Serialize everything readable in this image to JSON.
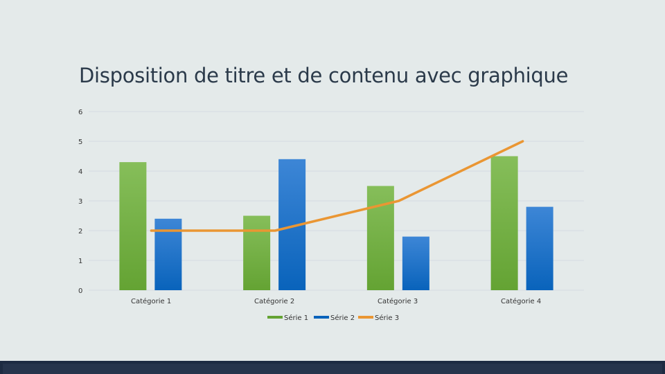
{
  "slide": {
    "title": "Disposition de titre et de contenu avec graphique"
  },
  "colors": {
    "background": "#e4eaea",
    "gridline": "#d3dbe2",
    "serie1_top": "#86be5a",
    "serie1_bottom": "#64a333",
    "serie2_top": "#3d86d6",
    "serie2_bottom": "#0963bb",
    "serie3": "#ea9633",
    "bottom_band": "#1d2b42"
  },
  "chart_data": {
    "type": "bar",
    "categories": [
      "Catégorie 1",
      "Catégorie 2",
      "Catégorie 3",
      "Catégorie 4"
    ],
    "series": [
      {
        "name": "Série 1",
        "type": "bar",
        "values": [
          4.3,
          2.5,
          3.5,
          4.5
        ]
      },
      {
        "name": "Série 2",
        "type": "bar",
        "values": [
          2.4,
          4.4,
          1.8,
          2.8
        ]
      },
      {
        "name": "Série 3",
        "type": "line",
        "values": [
          2,
          2,
          3,
          5
        ]
      }
    ],
    "title": "",
    "xlabel": "",
    "ylabel": "",
    "ylim": [
      0,
      6
    ],
    "yticks": [
      "0",
      "1",
      "2",
      "3",
      "4",
      "5",
      "6"
    ],
    "grid": true,
    "legend": "bottom"
  }
}
